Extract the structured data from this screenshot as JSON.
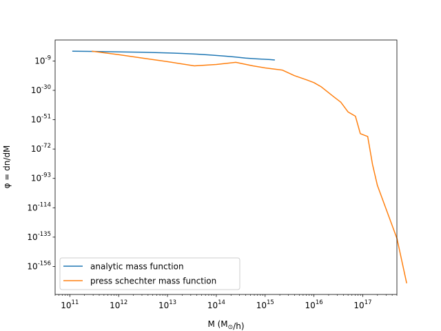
{
  "chart_data": {
    "type": "line",
    "title": "",
    "xlabel": "M ($M_\\odot$/h)",
    "ylabel": "$\\phi = \\frac{dn}{dM}$",
    "x_scale": "log",
    "y_scale": "log",
    "xlim": [
      50000000000,
      500000000000000000
    ],
    "ylim_exp": [
      -176,
      6
    ],
    "grid": false,
    "legend_position": "lower-left",
    "x_ticks": [
      {
        "exp": 11,
        "label": "10^11"
      },
      {
        "exp": 12,
        "label": "10^12"
      },
      {
        "exp": 13,
        "label": "10^13"
      },
      {
        "exp": 14,
        "label": "10^14"
      },
      {
        "exp": 15,
        "label": "10^15"
      },
      {
        "exp": 16,
        "label": "10^16"
      },
      {
        "exp": 17,
        "label": "10^17"
      }
    ],
    "y_ticks": [
      {
        "exp": -9,
        "label": "10^-9"
      },
      {
        "exp": -30,
        "label": "10^-30"
      },
      {
        "exp": -51,
        "label": "10^-51"
      },
      {
        "exp": -72,
        "label": "10^-72"
      },
      {
        "exp": -93,
        "label": "10^-93"
      },
      {
        "exp": -114,
        "label": "10^-114"
      },
      {
        "exp": -135,
        "label": "10^-135"
      },
      {
        "exp": -156,
        "label": "10^-156"
      }
    ],
    "series": [
      {
        "name": "analytic mass function",
        "color": "#1f77b4",
        "log10_x": [
          11.05,
          11.5,
          12.0,
          12.5,
          13.0,
          13.3,
          13.6,
          13.9,
          14.2,
          14.4,
          14.6,
          14.8,
          14.9,
          15.0,
          15.1,
          15.2
        ],
        "log10_y": [
          -2.0,
          -2.2,
          -2.5,
          -2.8,
          -3.2,
          -3.6,
          -4.1,
          -4.8,
          -5.6,
          -6.2,
          -6.9,
          -7.4,
          -7.6,
          -7.8,
          -8.0,
          -8.3
        ]
      },
      {
        "name": "press schechter mass function",
        "color": "#ff7f0e",
        "log10_x": [
          11.45,
          12.0,
          12.5,
          13.0,
          13.55,
          14.0,
          14.4,
          14.75,
          15.0,
          15.35,
          15.6,
          15.85,
          16.0,
          16.15,
          16.4,
          16.55,
          16.7,
          16.85,
          16.95,
          17.1,
          17.2,
          17.3,
          17.5,
          17.7,
          17.9
        ],
        "log10_y": [
          -2.0,
          -4.5,
          -7.0,
          -9.5,
          -12.5,
          -11.5,
          -10.0,
          -12.5,
          -14.0,
          -15.5,
          -19.5,
          -22.5,
          -24.5,
          -27.5,
          -34.5,
          -38.5,
          -45.5,
          -48.5,
          -61.0,
          -63.0,
          -83.0,
          -98.0,
          -117.0,
          -136.0,
          -168.0
        ]
      }
    ]
  }
}
